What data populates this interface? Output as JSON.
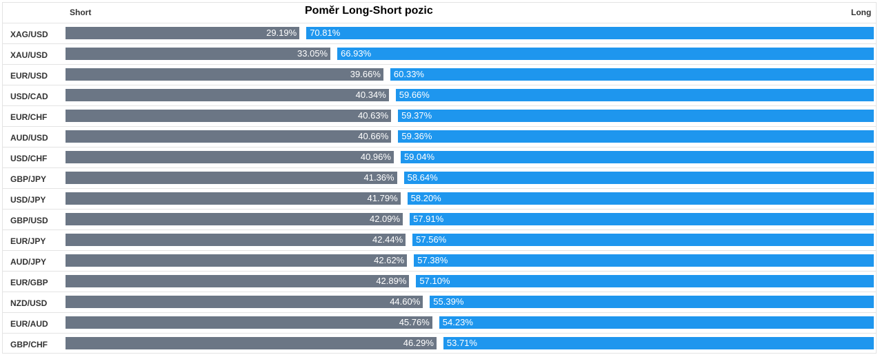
{
  "chart_data": {
    "type": "bar",
    "title": "Poměr Long-Short pozic",
    "left_label": "Short",
    "right_label": "Long",
    "colors": {
      "short": "#6b7685",
      "long": "#1e96ee"
    },
    "categories": [
      "XAG/USD",
      "XAU/USD",
      "EUR/USD",
      "USD/CAD",
      "EUR/CHF",
      "AUD/USD",
      "USD/CHF",
      "GBP/JPY",
      "USD/JPY",
      "GBP/USD",
      "EUR/JPY",
      "AUD/JPY",
      "EUR/GBP",
      "NZD/USD",
      "EUR/AUD",
      "GBP/CHF"
    ],
    "series": [
      {
        "name": "Short",
        "values": [
          29.19,
          33.05,
          39.66,
          40.34,
          40.63,
          40.66,
          40.96,
          41.36,
          41.79,
          42.09,
          42.44,
          42.62,
          42.89,
          44.6,
          45.76,
          46.29
        ],
        "labels": [
          "29.19%",
          "33.05%",
          "39.66%",
          "40.34%",
          "40.63%",
          "40.66%",
          "40.96%",
          "41.36%",
          "41.79%",
          "42.09%",
          "42.44%",
          "42.62%",
          "42.89%",
          "44.60%",
          "45.76%",
          "46.29%"
        ]
      },
      {
        "name": "Long",
        "values": [
          70.81,
          66.93,
          60.33,
          59.66,
          59.37,
          59.36,
          59.04,
          58.64,
          58.2,
          57.91,
          57.56,
          57.38,
          57.1,
          55.39,
          54.23,
          53.71
        ],
        "labels": [
          "70.81%",
          "66.93%",
          "60.33%",
          "59.66%",
          "59.37%",
          "59.36%",
          "59.04%",
          "58.64%",
          "58.20%",
          "57.91%",
          "57.56%",
          "57.38%",
          "57.10%",
          "55.39%",
          "54.23%",
          "53.71%"
        ]
      }
    ]
  }
}
